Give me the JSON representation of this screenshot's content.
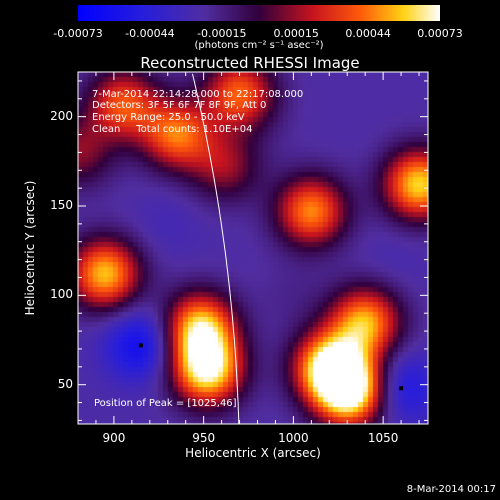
{
  "chart_data": {
    "type": "heatmap",
    "title": "Reconstructed RHESSI Image",
    "xlabel": "Heliocentric X (arcsec)",
    "ylabel": "Heliocentric Y (arcsec)",
    "xlim": [
      880,
      1075
    ],
    "ylim": [
      28,
      225
    ],
    "x_ticks": [
      900,
      950,
      1000,
      1050
    ],
    "y_ticks": [
      50,
      100,
      150,
      200
    ],
    "x_tick_labels": [
      "900",
      "950",
      "1000",
      "1050"
    ],
    "y_tick_labels": [
      "50",
      "100",
      "150",
      "200"
    ],
    "colorbar": {
      "ticks": [
        -0.00073,
        -0.00044,
        -0.00015,
        0.00015,
        0.00044,
        0.00073
      ],
      "tick_labels": [
        "-0.00073",
        "-0.00044",
        "-0.00015",
        "0.00015",
        "0.00044",
        "0.00073"
      ],
      "label": "(photons cm⁻² s⁻¹ asec⁻²)",
      "range": [
        -0.00073,
        0.00073
      ],
      "colormap": "blue-purple-red-yellow-white"
    },
    "annotations": [
      "7-Mar-2014 22:14:28.000 to 22:17:08.000",
      "Detectors: 3F 5F 6F 7F 8F 9F, Att 0",
      "Energy Range: 25.0 - 50.0 keV",
      "Clean     Total counts: 1.10E+04"
    ],
    "peak_label": "Position of Peak = [1025,46]",
    "limb_color": "#ffffff",
    "sources": [
      {
        "x": 915,
        "y": 72,
        "value": -0.00062
      },
      {
        "x": 1060,
        "y": 48,
        "value": -0.00055
      },
      {
        "x": 952,
        "y": 58,
        "value": 0.00068
      },
      {
        "x": 948,
        "y": 82,
        "value": 0.00058
      },
      {
        "x": 1020,
        "y": 60,
        "value": 0.00066
      },
      {
        "x": 1032,
        "y": 46,
        "value": 0.00073
      },
      {
        "x": 1040,
        "y": 85,
        "value": 0.00052
      },
      {
        "x": 905,
        "y": 207,
        "value": 0.00036
      },
      {
        "x": 935,
        "y": 190,
        "value": 0.00042
      },
      {
        "x": 970,
        "y": 213,
        "value": 0.0004
      },
      {
        "x": 1010,
        "y": 147,
        "value": 0.00047
      },
      {
        "x": 1070,
        "y": 162,
        "value": 0.0006
      },
      {
        "x": 895,
        "y": 112,
        "value": 0.00056
      },
      {
        "x": 962,
        "y": 172,
        "value": 0.00014
      },
      {
        "x": 880,
        "y": 180,
        "value": 0.00012
      },
      {
        "x": 1000,
        "y": 100,
        "value": -0.00018
      },
      {
        "x": 930,
        "y": 140,
        "value": -0.0003
      },
      {
        "x": 1055,
        "y": 120,
        "value": -0.00028
      },
      {
        "x": 985,
        "y": 195,
        "value": -0.00022
      }
    ],
    "peak_markers": [
      {
        "x": 915,
        "y": 72
      },
      {
        "x": 1060,
        "y": 48
      }
    ]
  },
  "footer": {
    "date": "8-Mar-2014 00:17"
  }
}
